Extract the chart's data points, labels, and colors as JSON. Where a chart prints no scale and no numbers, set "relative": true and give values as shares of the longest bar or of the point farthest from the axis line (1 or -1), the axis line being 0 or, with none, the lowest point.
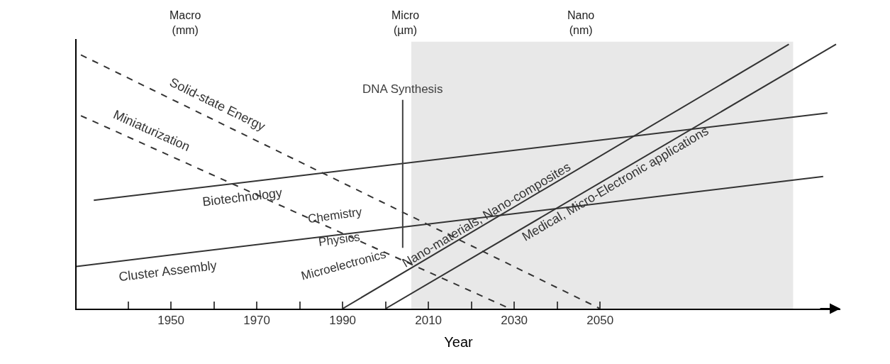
{
  "chart_data": {
    "type": "line",
    "relative": true,
    "xlabel": "Year",
    "xlim": [
      1928,
      2106
    ],
    "xticks": [
      {
        "value": 1940,
        "label": null
      },
      1950,
      {
        "value": 1960,
        "label": null
      },
      1970,
      {
        "value": 1980,
        "label": null
      },
      1990,
      {
        "value": 2000,
        "label": null
      },
      2010,
      {
        "value": 2020,
        "label": null
      },
      2030,
      {
        "value": 2040,
        "label": null
      },
      2050
    ],
    "series": [
      {
        "name": "Solid-state Energy",
        "color": "#333333",
        "line_style": "dashed",
        "x": [
          1929,
          2050
        ],
        "values": [
          0.96,
          0
        ]
      },
      {
        "name": "Miniaturization",
        "color": "#333333",
        "line_style": "dashed",
        "x": [
          1929,
          2029
        ],
        "values": [
          0.73,
          0
        ]
      },
      {
        "name": "Biotechnology",
        "color": "#333333",
        "line_style": "solid",
        "x": [
          1932,
          2103
        ],
        "values": [
          0.41,
          0.74
        ]
      },
      {
        "name": "Cluster Assembly",
        "color": "#333333",
        "line_style": "solid",
        "x": [
          1928,
          2102
        ],
        "values": [
          0.16,
          0.5
        ]
      },
      {
        "name": "Nano-materials, Nano-composites",
        "color": "#333333",
        "line_style": "solid",
        "x": [
          1990,
          2094
        ],
        "values": [
          0,
          1
        ]
      },
      {
        "name": "Medical, Micro-Electronic applications",
        "color": "#333333",
        "line_style": "solid",
        "x": [
          2000,
          2105
        ],
        "values": [
          0,
          1
        ]
      }
    ],
    "ref_lines": [
      {
        "axis": "x",
        "value": 2004,
        "label": "DNA Synthesis",
        "color": "#404040"
      }
    ],
    "bands": [
      {
        "axis": "x",
        "from": 2006,
        "to": 2095,
        "color": "#e8e8e8"
      }
    ],
    "annotations": [
      "Macro\n(mm)",
      "Micro\n(µm)",
      "Nano\n(nm)",
      "Chemistry",
      "Physics",
      "Microelectronics"
    ],
    "legend": false,
    "grid": false,
    "marker": "none"
  }
}
